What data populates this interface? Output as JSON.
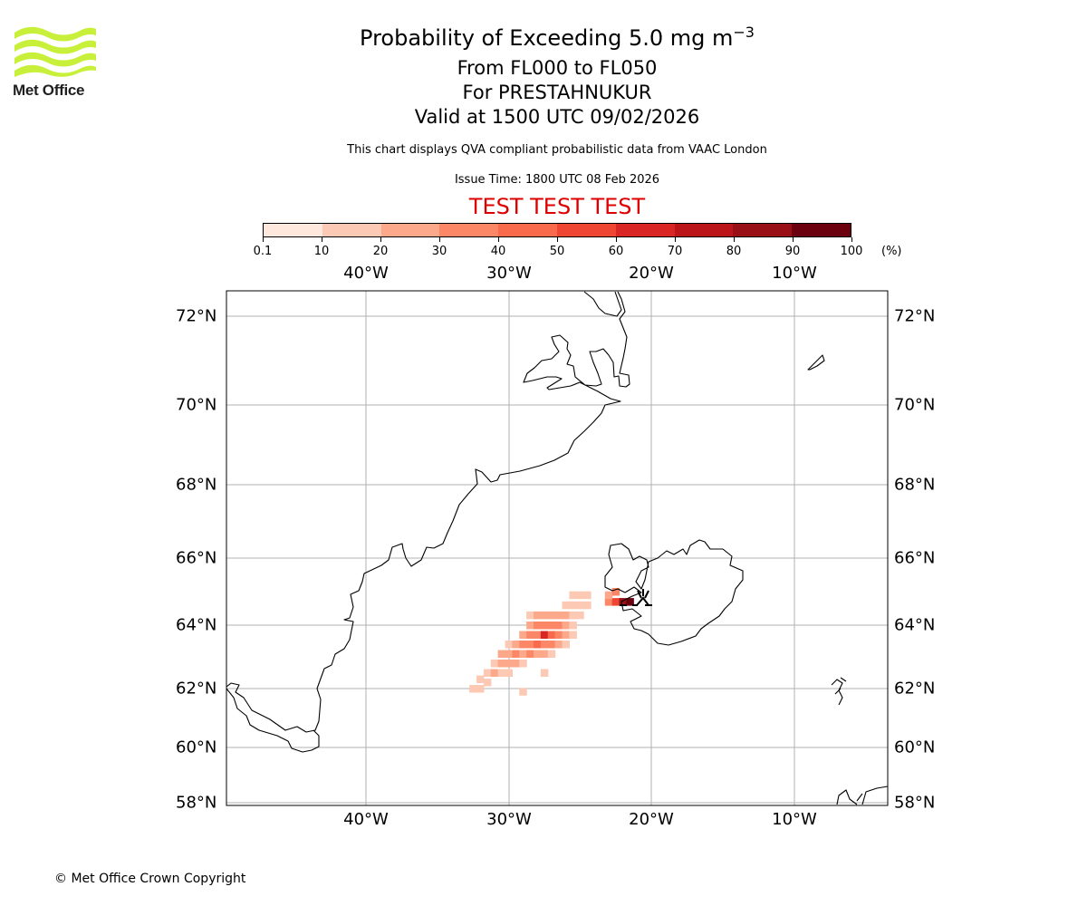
{
  "logo": {
    "text": "Met Office",
    "colors": [
      "#c8f03a",
      "#1f1f1f"
    ]
  },
  "title": {
    "main": "Probability of Exceeding 5.0 mg m",
    "superscript": "−3",
    "levels": "From FL000 to FL050",
    "location": "For PRESTAHNUKUR",
    "valid": "Valid at 1500 UTC 09/02/2026",
    "note": "This chart displays QVA compliant probabilistic data from VAAC London",
    "issue_time": "Issue Time: 1800 UTC 08 Feb 2026",
    "test_banner": "TEST TEST TEST",
    "test_color": "#dd0000"
  },
  "colorbar": {
    "ticks": [
      "0.1",
      "10",
      "20",
      "30",
      "40",
      "50",
      "60",
      "70",
      "80",
      "90",
      "100"
    ],
    "unit": "(%)",
    "colors": [
      "#fee7dc",
      "#fcc9b4",
      "#fca88a",
      "#fc8767",
      "#f9694c",
      "#ef4533",
      "#d92523",
      "#bb1419",
      "#981015",
      "#6b010e"
    ]
  },
  "map": {
    "lon_labels": [
      "40°W",
      "30°W",
      "20°W",
      "10°W"
    ],
    "lat_labels": [
      "72°N",
      "70°N",
      "68°N",
      "66°N",
      "64°N",
      "62°N",
      "60°N",
      "58°N"
    ],
    "volcano_symbol": "volcano-icon",
    "probability_cells": [
      {
        "lon": -32.5,
        "lat": 62.0,
        "cls": 1
      },
      {
        "lon": -32.0,
        "lat": 62.0,
        "cls": 1
      },
      {
        "lon": -31.5,
        "lat": 62.2,
        "cls": 1
      },
      {
        "lon": -32.0,
        "lat": 62.3,
        "cls": 1
      },
      {
        "lon": -31.5,
        "lat": 62.5,
        "cls": 1
      },
      {
        "lon": -31.0,
        "lat": 62.5,
        "cls": 2
      },
      {
        "lon": -30.5,
        "lat": 62.5,
        "cls": 1
      },
      {
        "lon": -30.0,
        "lat": 62.5,
        "cls": 1
      },
      {
        "lon": -31.0,
        "lat": 62.8,
        "cls": 1
      },
      {
        "lon": -30.5,
        "lat": 62.8,
        "cls": 2
      },
      {
        "lon": -30.0,
        "lat": 62.8,
        "cls": 2
      },
      {
        "lon": -29.5,
        "lat": 62.8,
        "cls": 2
      },
      {
        "lon": -29.0,
        "lat": 62.8,
        "cls": 1
      },
      {
        "lon": -30.5,
        "lat": 63.1,
        "cls": 2
      },
      {
        "lon": -30.0,
        "lat": 63.1,
        "cls": 2
      },
      {
        "lon": -29.5,
        "lat": 63.1,
        "cls": 3
      },
      {
        "lon": -29.0,
        "lat": 63.1,
        "cls": 2
      },
      {
        "lon": -28.5,
        "lat": 63.1,
        "cls": 3
      },
      {
        "lon": -28.0,
        "lat": 63.1,
        "cls": 2
      },
      {
        "lon": -27.5,
        "lat": 63.1,
        "cls": 2
      },
      {
        "lon": -27.0,
        "lat": 63.1,
        "cls": 1
      },
      {
        "lon": -30.0,
        "lat": 63.4,
        "cls": 1
      },
      {
        "lon": -29.5,
        "lat": 63.4,
        "cls": 2
      },
      {
        "lon": -29.0,
        "lat": 63.4,
        "cls": 3
      },
      {
        "lon": -28.5,
        "lat": 63.4,
        "cls": 3
      },
      {
        "lon": -28.0,
        "lat": 63.4,
        "cls": 4
      },
      {
        "lon": -27.5,
        "lat": 63.4,
        "cls": 3
      },
      {
        "lon": -27.0,
        "lat": 63.4,
        "cls": 3
      },
      {
        "lon": -26.5,
        "lat": 63.4,
        "cls": 2
      },
      {
        "lon": -26.0,
        "lat": 63.4,
        "cls": 1
      },
      {
        "lon": -29.0,
        "lat": 63.7,
        "cls": 2
      },
      {
        "lon": -28.5,
        "lat": 63.7,
        "cls": 3
      },
      {
        "lon": -28.0,
        "lat": 63.7,
        "cls": 3
      },
      {
        "lon": -27.5,
        "lat": 63.7,
        "cls": 6
      },
      {
        "lon": -27.0,
        "lat": 63.7,
        "cls": 4
      },
      {
        "lon": -26.5,
        "lat": 63.7,
        "cls": 3
      },
      {
        "lon": -26.0,
        "lat": 63.7,
        "cls": 2
      },
      {
        "lon": -25.5,
        "lat": 63.7,
        "cls": 1
      },
      {
        "lon": -28.5,
        "lat": 64.0,
        "cls": 2
      },
      {
        "lon": -28.0,
        "lat": 64.0,
        "cls": 3
      },
      {
        "lon": -27.5,
        "lat": 64.0,
        "cls": 3
      },
      {
        "lon": -27.0,
        "lat": 64.0,
        "cls": 3
      },
      {
        "lon": -26.5,
        "lat": 64.0,
        "cls": 3
      },
      {
        "lon": -26.0,
        "lat": 64.0,
        "cls": 2
      },
      {
        "lon": -25.5,
        "lat": 64.0,
        "cls": 1
      },
      {
        "lon": -28.5,
        "lat": 64.3,
        "cls": 1
      },
      {
        "lon": -28.0,
        "lat": 64.3,
        "cls": 2
      },
      {
        "lon": -27.5,
        "lat": 64.3,
        "cls": 2
      },
      {
        "lon": -27.0,
        "lat": 64.3,
        "cls": 2
      },
      {
        "lon": -26.5,
        "lat": 64.3,
        "cls": 2
      },
      {
        "lon": -26.0,
        "lat": 64.3,
        "cls": 2
      },
      {
        "lon": -25.5,
        "lat": 64.3,
        "cls": 1
      },
      {
        "lon": -25.0,
        "lat": 64.3,
        "cls": 1
      },
      {
        "lon": -26.0,
        "lat": 64.6,
        "cls": 1
      },
      {
        "lon": -25.5,
        "lat": 64.6,
        "cls": 1
      },
      {
        "lon": -25.0,
        "lat": 64.6,
        "cls": 1
      },
      {
        "lon": -24.5,
        "lat": 64.6,
        "cls": 1
      },
      {
        "lon": -25.5,
        "lat": 64.9,
        "cls": 1
      },
      {
        "lon": -25.0,
        "lat": 64.9,
        "cls": 1
      },
      {
        "lon": -24.5,
        "lat": 64.9,
        "cls": 1
      },
      {
        "lon": -29.0,
        "lat": 61.9,
        "cls": 1
      },
      {
        "lon": -27.5,
        "lat": 62.5,
        "cls": 1
      },
      {
        "lon": -23.0,
        "lat": 64.7,
        "cls": 3
      },
      {
        "lon": -22.5,
        "lat": 64.7,
        "cls": 5
      },
      {
        "lon": -22.0,
        "lat": 64.7,
        "cls": 8
      },
      {
        "lon": -21.5,
        "lat": 64.7,
        "cls": 9
      },
      {
        "lon": -23.0,
        "lat": 64.9,
        "cls": 2
      },
      {
        "lon": -22.5,
        "lat": 65.0,
        "cls": 3
      }
    ]
  },
  "footer": {
    "copyright": "© Met Office Crown Copyright"
  }
}
